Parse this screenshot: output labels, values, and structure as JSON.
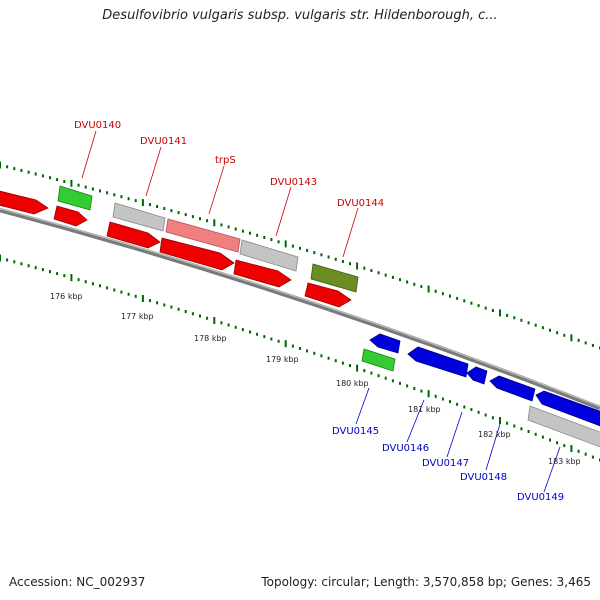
{
  "title": "Desulfovibrio vulgaris subsp. vulgaris str. Hildenborough, c...",
  "footer": {
    "accession": "Accession: NC_002937",
    "summary": "Topology: circular; Length: 3,570,858 bp; Genes: 3,465"
  },
  "colors": {
    "forward_cds": "#ee0000",
    "reverse_cds": "#0000dd",
    "rna": "#33cc33",
    "other": "#c4c4c4",
    "trpS_highlight": "#f08080",
    "olive": "#6b8e23",
    "tick": "#006600",
    "backbone": "#808080",
    "label_forward": "#cc0000",
    "label_reverse": "#0000cc"
  },
  "scale": {
    "unit": "kbp",
    "labels": [
      "176 kbp",
      "177 kbp",
      "178 kbp",
      "179 kbp",
      "180 kbp",
      "181 kbp",
      "182 kbp",
      "183 kbp"
    ]
  },
  "forward_labels": [
    "DVU0140",
    "DVU0141",
    "trpS",
    "DVU0143",
    "DVU0144"
  ],
  "reverse_labels": [
    "DVU0145",
    "DVU0146",
    "DVU0147",
    "DVU0148",
    "DVU0149"
  ]
}
